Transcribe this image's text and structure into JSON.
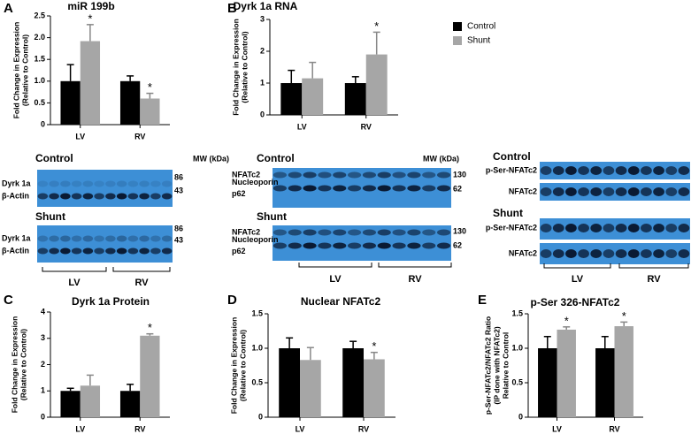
{
  "chart_data": [
    {
      "type": "bar",
      "panel": "A",
      "title": "miR 199b",
      "ylabel": [
        "Fold Change in Expression",
        "(Relative to Control)"
      ],
      "categories": [
        "LV",
        "RV"
      ],
      "ylim": [
        0,
        2.5
      ],
      "yticks": [
        0,
        0.5,
        {
          "value": 1,
          "label": "1.0"
        },
        1.5,
        {
          "value": 2,
          "label": "2.0"
        },
        2.5
      ],
      "series": [
        {
          "color": "#000000",
          "values": [
            1.0,
            1.0
          ],
          "errors": [
            0.38,
            0.12
          ],
          "stars": [
            null,
            null
          ]
        },
        {
          "color": "#a6a6a6",
          "values": [
            1.92,
            0.6
          ],
          "errors": [
            0.38,
            0.12
          ],
          "stars": [
            "*",
            "*"
          ]
        }
      ]
    },
    {
      "type": "bar",
      "panel": "B",
      "title": "Dyrk 1a RNA",
      "ylabel": [
        "Fold Change in Expression",
        "(Relative to Control)"
      ],
      "categories": [
        "LV",
        "RV"
      ],
      "ylim": [
        0,
        3
      ],
      "yticks": [
        0,
        1,
        2,
        3
      ],
      "legend": "right",
      "series": [
        {
          "name": "Control",
          "color": "#000000",
          "values": [
            1.0,
            1.0
          ],
          "errors": [
            0.4,
            0.2
          ],
          "stars": [
            null,
            null
          ]
        },
        {
          "name": "Shunt",
          "color": "#a6a6a6",
          "values": [
            1.15,
            1.9
          ],
          "errors": [
            0.5,
            0.7
          ],
          "stars": [
            null,
            "*"
          ]
        }
      ]
    },
    {
      "type": "bar",
      "panel": "C",
      "title": "Dyrk 1a Protein",
      "ylabel": [
        "Fold Change in Expression",
        "(Relative to Control)"
      ],
      "categories": [
        "LV",
        "RV"
      ],
      "ylim": [
        0,
        4
      ],
      "yticks": [
        0,
        1,
        2,
        3,
        4
      ],
      "series": [
        {
          "color": "#000000",
          "values": [
            1.0,
            1.0
          ],
          "errors": [
            0.1,
            0.25
          ],
          "stars": [
            null,
            null
          ]
        },
        {
          "color": "#a6a6a6",
          "values": [
            1.2,
            3.1
          ],
          "errors": [
            0.4,
            0.07
          ],
          "stars": [
            null,
            "*"
          ]
        }
      ]
    },
    {
      "type": "bar",
      "panel": "D",
      "title": "Nuclear NFATc2",
      "ylabel": [
        "Fold Change in Expression",
        "(Relative to Control)"
      ],
      "categories": [
        "LV",
        "RV"
      ],
      "ylim": [
        0,
        1.5
      ],
      "yticks": [
        0,
        0.5,
        {
          "value": 1,
          "label": "1.0"
        },
        1.5
      ],
      "series": [
        {
          "color": "#000000",
          "values": [
            1.0,
            1.0
          ],
          "errors": [
            0.15,
            0.1
          ],
          "stars": [
            null,
            null
          ]
        },
        {
          "color": "#a6a6a6",
          "values": [
            0.83,
            0.84
          ],
          "errors": [
            0.18,
            0.1
          ],
          "stars": [
            null,
            "*"
          ]
        }
      ]
    },
    {
      "type": "bar",
      "panel": "E",
      "title": "p-Ser 326-NFATc2",
      "ylabel": [
        "p-Ser-NFATc2/NFATc2 Ratio",
        "(IP done with NFATc2)",
        "Relative to Control"
      ],
      "categories": [
        "LV",
        "RV"
      ],
      "ylim": [
        0,
        1.5
      ],
      "yticks": [
        0,
        0.5,
        {
          "value": 1,
          "label": "1.0"
        },
        1.5
      ],
      "series": [
        {
          "color": "#000000",
          "values": [
            1.0,
            1.0
          ],
          "errors": [
            0.17,
            0.17
          ],
          "stars": [
            null,
            null
          ]
        },
        {
          "color": "#a6a6a6",
          "values": [
            1.27,
            1.32
          ],
          "errors": [
            0.04,
            0.06
          ],
          "stars": [
            "*",
            "*"
          ]
        }
      ]
    }
  ],
  "blots": [
    {
      "mw_header": "MW (kDa)",
      "groups": [
        "LV",
        "RV"
      ],
      "conditions": [
        {
          "title": "Control",
          "rows": [
            {
              "label": [
                "Dyrk 1a"
              ],
              "mw": 86
            },
            {
              "label": [
                "β-Actin"
              ],
              "mw": 43
            }
          ]
        },
        {
          "title": "Shunt",
          "rows": [
            {
              "label": [
                "Dyrk 1a"
              ],
              "mw": 86
            },
            {
              "label": [
                "β-Actin"
              ],
              "mw": 43
            }
          ]
        }
      ]
    },
    {
      "mw_header": "MW (kDa)",
      "groups": [
        "LV",
        "RV"
      ],
      "conditions": [
        {
          "title": "Control",
          "rows": [
            {
              "label": [
                "NFATc2"
              ],
              "mw": 130
            },
            {
              "label": [
                "Nucleoporin",
                "p62"
              ],
              "mw": 62
            }
          ]
        },
        {
          "title": "Shunt",
          "rows": [
            {
              "label": [
                "NFATc2"
              ],
              "mw": 130
            },
            {
              "label": [
                "Nucleoporin",
                "p62"
              ],
              "mw": 62
            }
          ]
        }
      ]
    },
    {
      "groups": [
        "LV",
        "RV"
      ],
      "conditions": [
        {
          "title": "Control",
          "rows": [
            {
              "label": [
                "p-Ser-NFATc2"
              ]
            },
            {
              "label": [
                "NFATc2"
              ]
            }
          ]
        },
        {
          "title": "Shunt",
          "rows": [
            {
              "label": [
                "p-Ser-NFATc2"
              ]
            },
            {
              "label": [
                "NFATc2"
              ]
            }
          ]
        }
      ]
    }
  ]
}
